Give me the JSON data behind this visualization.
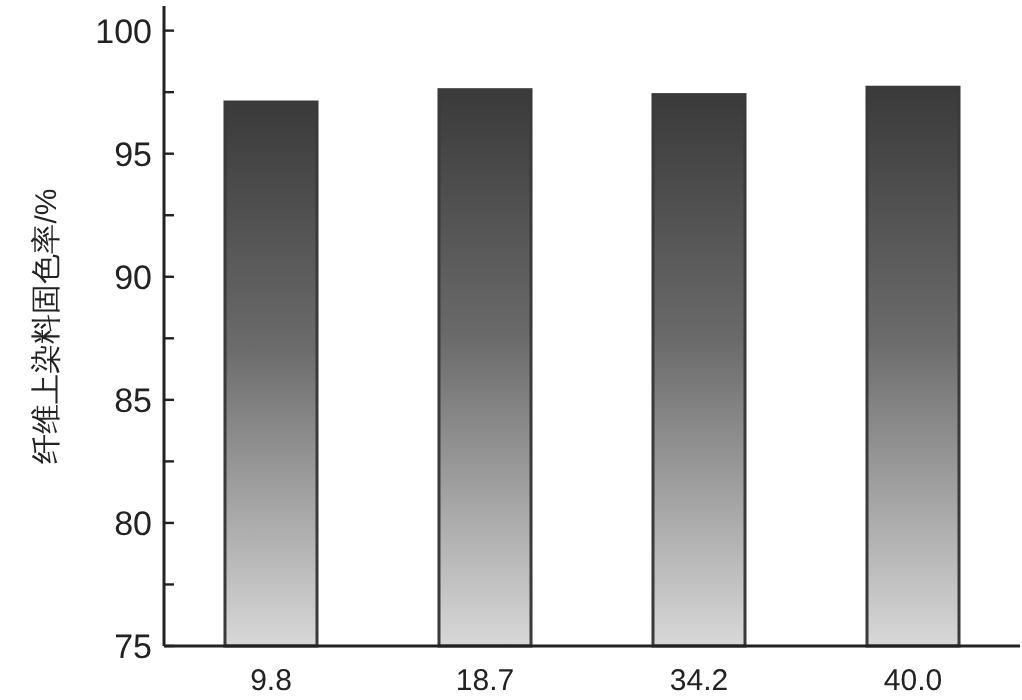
{
  "chart_data": {
    "type": "bar",
    "ylabel": "纤维上染料固色率/%",
    "categories": [
      "9.8",
      "18.7",
      "34.2",
      "40.0"
    ],
    "values": [
      97.1,
      97.6,
      97.4,
      97.7
    ],
    "color": "#3a3a3a",
    "ylim": [
      75,
      101
    ],
    "yticks": [
      75,
      {
        "value": 77.5,
        "label": null
      },
      80,
      {
        "value": 82.5,
        "label": null
      },
      85,
      {
        "value": 87.5,
        "label": null
      },
      90,
      {
        "value": 92.5,
        "label": null
      },
      95,
      {
        "value": 97.5,
        "label": null
      },
      100
    ],
    "grid": false
  }
}
